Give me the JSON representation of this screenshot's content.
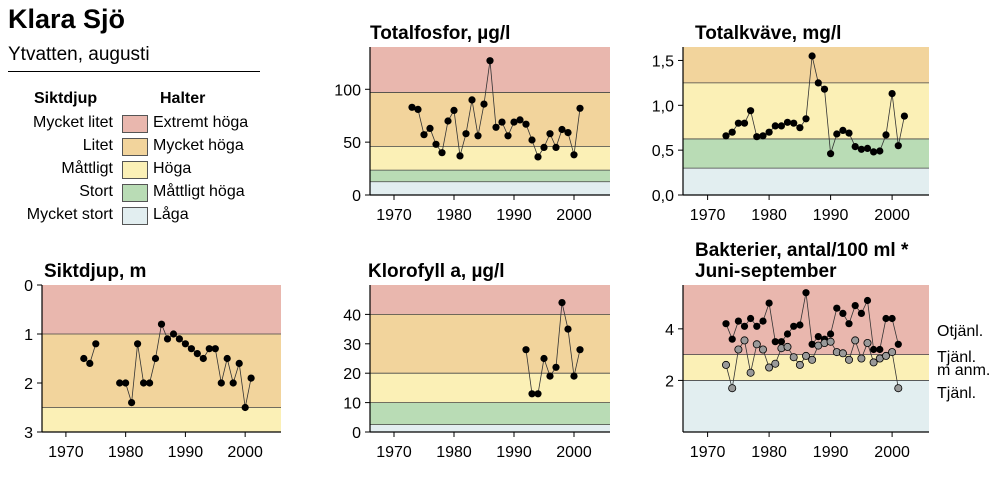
{
  "header": {
    "title": "Klara Sjö",
    "subtitle": "Ytvatten, augusti"
  },
  "legend": {
    "left_heading": "Siktdjup",
    "right_heading": "Halter",
    "rows": [
      {
        "left": "Mycket litet",
        "right": "Extremt höga",
        "color": "#e9b7ae"
      },
      {
        "left": "Litet",
        "right": "Mycket höga",
        "color": "#f2d49c"
      },
      {
        "left": "Måttligt",
        "right": "Höga",
        "color": "#fbf0b6"
      },
      {
        "left": "Stort",
        "right": "Måttligt höga",
        "color": "#b9dcb5"
      },
      {
        "left": "Mycket stort",
        "right": "Låga",
        "color": "#e2eef0"
      }
    ]
  },
  "chart_data": [
    {
      "id": "totalfosfor",
      "type": "line",
      "title": "Totalfosfor, µg/l",
      "xlim": [
        1966,
        2006
      ],
      "ylim": [
        0,
        140
      ],
      "xticks": [
        1970,
        1980,
        1990,
        2000
      ],
      "yticks": [
        0,
        50,
        100
      ],
      "bands": [
        {
          "from": 0,
          "to": 12.5,
          "color": "#e2eef0"
        },
        {
          "from": 12.5,
          "to": 23.5,
          "color": "#b9dcb5"
        },
        {
          "from": 23.5,
          "to": 46,
          "color": "#fbf0b6"
        },
        {
          "from": 46,
          "to": 97,
          "color": "#f2d49c"
        },
        {
          "from": 97,
          "to": 140,
          "color": "#e9b7ae"
        }
      ],
      "series": [
        {
          "color": "#000000",
          "points": [
            [
              1973,
              83
            ],
            [
              1974,
              81
            ],
            [
              1975,
              57
            ],
            [
              1976,
              63
            ],
            [
              1977,
              48
            ],
            [
              1978,
              40
            ],
            [
              1979,
              70
            ],
            [
              1980,
              80
            ],
            [
              1981,
              37
            ],
            [
              1982,
              58
            ],
            [
              1983,
              90
            ],
            [
              1984,
              56
            ],
            [
              1985,
              86
            ],
            [
              1986,
              127
            ],
            [
              1987,
              64
            ],
            [
              1988,
              69
            ],
            [
              1989,
              56
            ],
            [
              1990,
              69
            ],
            [
              1991,
              71
            ],
            [
              1992,
              67
            ],
            [
              1993,
              52
            ],
            [
              1994,
              36
            ],
            [
              1995,
              45
            ],
            [
              1996,
              58
            ],
            [
              1997,
              45
            ],
            [
              1998,
              62
            ],
            [
              1999,
              59
            ],
            [
              2000,
              38
            ],
            [
              2001,
              82
            ]
          ]
        }
      ]
    },
    {
      "id": "totalkvave",
      "type": "line",
      "title": "Totalkväve, mg/l",
      "xlim": [
        1966,
        2006
      ],
      "ylim": [
        0,
        1.65
      ],
      "xticks": [
        1970,
        1980,
        1990,
        2000
      ],
      "yticks": [
        0.0,
        0.5,
        1.0,
        1.5
      ],
      "ytick_labels": [
        "0,0",
        "0,5",
        "1,0",
        "1,5"
      ],
      "bands": [
        {
          "from": 0,
          "to": 0.3,
          "color": "#e2eef0"
        },
        {
          "from": 0.3,
          "to": 0.625,
          "color": "#b9dcb5"
        },
        {
          "from": 0.625,
          "to": 1.25,
          "color": "#fbf0b6"
        },
        {
          "from": 1.25,
          "to": 1.65,
          "color": "#f2d49c"
        }
      ],
      "series": [
        {
          "color": "#000000",
          "points": [
            [
              1973,
              0.66
            ],
            [
              1974,
              0.7
            ],
            [
              1975,
              0.8
            ],
            [
              1976,
              0.8
            ],
            [
              1977,
              0.94
            ],
            [
              1978,
              0.65
            ],
            [
              1979,
              0.66
            ],
            [
              1980,
              0.7
            ],
            [
              1981,
              0.77
            ],
            [
              1982,
              0.77
            ],
            [
              1983,
              0.81
            ],
            [
              1984,
              0.8
            ],
            [
              1985,
              0.75
            ],
            [
              1986,
              0.85
            ],
            [
              1987,
              1.55
            ],
            [
              1988,
              1.25
            ],
            [
              1989,
              1.18
            ],
            [
              1990,
              0.46
            ],
            [
              1991,
              0.68
            ],
            [
              1992,
              0.72
            ],
            [
              1993,
              0.69
            ],
            [
              1994,
              0.54
            ],
            [
              1995,
              0.51
            ],
            [
              1996,
              0.52
            ],
            [
              1997,
              0.48
            ],
            [
              1998,
              0.49
            ],
            [
              1999,
              0.67
            ],
            [
              2000,
              1.13
            ],
            [
              2001,
              0.55
            ],
            [
              2002,
              0.88
            ]
          ]
        }
      ]
    },
    {
      "id": "siktdjup",
      "type": "line",
      "title": "Siktdjup, m",
      "xlim": [
        1966,
        2006
      ],
      "ylim": [
        0,
        3
      ],
      "yinverted": true,
      "xticks": [
        1970,
        1980,
        1990,
        2000
      ],
      "yticks": [
        0,
        1,
        2,
        3
      ],
      "bands": [
        {
          "from": 0,
          "to": 1,
          "color": "#e9b7ae"
        },
        {
          "from": 1,
          "to": 2.5,
          "color": "#f2d49c"
        },
        {
          "from": 2.5,
          "to": 3,
          "color": "#fbf0b6"
        }
      ],
      "series": [
        {
          "color": "#000000",
          "points": [
            [
              1973,
              1.5
            ],
            [
              1974,
              1.6
            ],
            [
              1975,
              1.2
            ],
            [
              null,
              null
            ],
            [
              1979,
              2.0
            ],
            [
              1980,
              2.0
            ],
            [
              1981,
              2.4
            ],
            [
              1982,
              1.2
            ],
            [
              1983,
              2.0
            ],
            [
              1984,
              2.0
            ],
            [
              1985,
              1.5
            ],
            [
              1986,
              0.8
            ],
            [
              1987,
              1.1
            ],
            [
              1988,
              1.0
            ],
            [
              1989,
              1.1
            ],
            [
              1990,
              1.2
            ],
            [
              1991,
              1.3
            ],
            [
              1992,
              1.4
            ],
            [
              1993,
              1.5
            ],
            [
              1994,
              1.3
            ],
            [
              1995,
              1.3
            ],
            [
              1996,
              2.0
            ],
            [
              1997,
              1.5
            ],
            [
              1998,
              2.0
            ],
            [
              1999,
              1.6
            ],
            [
              2000,
              2.5
            ],
            [
              2001,
              1.9
            ]
          ]
        }
      ]
    },
    {
      "id": "klorofyll",
      "type": "line",
      "title": "Klorofyll a, µg/l",
      "xlim": [
        1966,
        2006
      ],
      "ylim": [
        0,
        50
      ],
      "xticks": [
        1970,
        1980,
        1990,
        2000
      ],
      "yticks": [
        0,
        10,
        20,
        30,
        40
      ],
      "bands": [
        {
          "from": 0,
          "to": 2.5,
          "color": "#e2eef0"
        },
        {
          "from": 2.5,
          "to": 10,
          "color": "#b9dcb5"
        },
        {
          "from": 10,
          "to": 20,
          "color": "#fbf0b6"
        },
        {
          "from": 20,
          "to": 40,
          "color": "#f2d49c"
        },
        {
          "from": 40,
          "to": 50,
          "color": "#e9b7ae"
        }
      ],
      "series": [
        {
          "color": "#000000",
          "points": [
            [
              1992,
              28
            ],
            [
              1993,
              13
            ],
            [
              1994,
              13
            ],
            [
              1995,
              25
            ],
            [
              1996,
              19
            ],
            [
              1997,
              22
            ],
            [
              1998,
              44
            ],
            [
              1999,
              35
            ],
            [
              2000,
              19
            ],
            [
              2001,
              28
            ]
          ]
        }
      ]
    },
    {
      "id": "bakterier",
      "type": "line",
      "title": "Bakterier, antal/100 ml *",
      "subtitle": "Juni-september",
      "xlim": [
        1966,
        2006
      ],
      "ylim": [
        0,
        5.7
      ],
      "xticks": [
        1970,
        1980,
        1990,
        2000
      ],
      "yticks": [
        2,
        4
      ],
      "bands": [
        {
          "from": 0,
          "to": 2,
          "color": "#e2eef0"
        },
        {
          "from": 2,
          "to": 3,
          "color": "#fbf0b6"
        },
        {
          "from": 3,
          "to": 5.7,
          "color": "#e9b7ae"
        }
      ],
      "right_labels": [
        {
          "y": 3.95,
          "text": "Otjänl."
        },
        {
          "y": 2.95,
          "text": "Tjänl."
        },
        {
          "y": 2.45,
          "text": "m anm."
        },
        {
          "y": 1.55,
          "text": "Tjänl."
        }
      ],
      "series": [
        {
          "color": "#000000",
          "points": [
            [
              1973,
              4.2
            ],
            [
              1974,
              3.6
            ],
            [
              1975,
              4.3
            ],
            [
              1976,
              4.1
            ],
            [
              1977,
              4.4
            ],
            [
              1978,
              4.1
            ],
            [
              1979,
              4.3
            ],
            [
              1980,
              5.0
            ],
            [
              1981,
              3.5
            ],
            [
              1982,
              3.5
            ],
            [
              1983,
              3.8
            ],
            [
              1984,
              4.1
            ],
            [
              1985,
              4.15
            ],
            [
              1986,
              5.4
            ],
            [
              1987,
              3.4
            ],
            [
              1988,
              3.7
            ],
            [
              1989,
              3.6
            ],
            [
              1990,
              3.8
            ],
            [
              1991,
              4.8
            ],
            [
              1992,
              4.6
            ],
            [
              1993,
              4.2
            ],
            [
              1994,
              4.9
            ],
            [
              1995,
              4.6
            ],
            [
              1996,
              5.1
            ],
            [
              1997,
              3.2
            ],
            [
              1998,
              3.2
            ],
            [
              1999,
              4.4
            ],
            [
              2000,
              4.4
            ],
            [
              2001,
              3.4
            ]
          ]
        },
        {
          "color": "#999999",
          "points": [
            [
              1973,
              2.6
            ],
            [
              1974,
              1.7
            ],
            [
              1975,
              3.2
            ],
            [
              1976,
              3.55
            ],
            [
              1977,
              2.3
            ],
            [
              1978,
              3.4
            ],
            [
              1979,
              3.2
            ],
            [
              1980,
              2.5
            ],
            [
              1981,
              2.65
            ],
            [
              1982,
              3.25
            ],
            [
              1983,
              3.3
            ],
            [
              1984,
              2.9
            ],
            [
              1985,
              2.6
            ],
            [
              1986,
              2.95
            ],
            [
              1987,
              2.8
            ],
            [
              1988,
              3.35
            ],
            [
              1989,
              3.45
            ],
            [
              1990,
              3.5
            ],
            [
              1991,
              3.1
            ],
            [
              1992,
              3.05
            ],
            [
              1993,
              2.8
            ],
            [
              1994,
              3.55
            ],
            [
              1995,
              2.85
            ],
            [
              1996,
              3.45
            ],
            [
              1997,
              2.7
            ],
            [
              1998,
              2.85
            ],
            [
              1999,
              2.95
            ],
            [
              2000,
              3.1
            ],
            [
              2001,
              1.7
            ]
          ]
        }
      ]
    }
  ]
}
